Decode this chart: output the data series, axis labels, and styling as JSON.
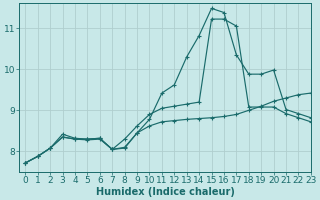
{
  "background_color": "#c8e8e8",
  "grid_color": "#b0cece",
  "line_color": "#1a6b6b",
  "xlabel": "Humidex (Indice chaleur)",
  "xlim": [
    -0.5,
    23
  ],
  "ylim": [
    7.5,
    11.6
  ],
  "yticks": [
    8,
    9,
    10,
    11
  ],
  "xticks": [
    0,
    1,
    2,
    3,
    4,
    5,
    6,
    7,
    8,
    9,
    10,
    11,
    12,
    13,
    14,
    15,
    16,
    17,
    18,
    19,
    20,
    21,
    22,
    23
  ],
  "line1_x": [
    0,
    1,
    2,
    3,
    4,
    5,
    6,
    7,
    8,
    9,
    10,
    11,
    12,
    13,
    14,
    15,
    16,
    17,
    18,
    19,
    20,
    21,
    22,
    23
  ],
  "line1_y": [
    7.72,
    7.88,
    8.08,
    8.35,
    8.3,
    8.28,
    8.3,
    8.05,
    8.08,
    8.45,
    8.78,
    9.42,
    9.62,
    10.3,
    10.82,
    11.48,
    11.38,
    10.35,
    9.88,
    9.88,
    9.98,
    9.02,
    8.92,
    8.82
  ],
  "line2_x": [
    0,
    1,
    2,
    3,
    4,
    5,
    6,
    7,
    8,
    9,
    10,
    11,
    12,
    13,
    14,
    15,
    16,
    17,
    18,
    19,
    20,
    21,
    22,
    23
  ],
  "line2_y": [
    7.72,
    7.88,
    8.08,
    8.42,
    8.32,
    8.3,
    8.32,
    8.05,
    8.3,
    8.62,
    8.9,
    9.05,
    9.1,
    9.15,
    9.2,
    11.22,
    11.22,
    11.05,
    9.08,
    9.08,
    9.08,
    8.92,
    8.82,
    8.72
  ],
  "line3_x": [
    0,
    1,
    2,
    3,
    4,
    5,
    6,
    7,
    8,
    9,
    10,
    11,
    12,
    13,
    14,
    15,
    16,
    17,
    18,
    19,
    20,
    21,
    22,
    23
  ],
  "line3_y": [
    7.72,
    7.88,
    8.08,
    8.35,
    8.3,
    8.3,
    8.32,
    8.05,
    8.1,
    8.45,
    8.62,
    8.72,
    8.75,
    8.78,
    8.8,
    8.82,
    8.85,
    8.9,
    9.0,
    9.1,
    9.22,
    9.3,
    9.38,
    9.42
  ],
  "xlabel_fontsize": 7,
  "tick_fontsize": 6.5
}
